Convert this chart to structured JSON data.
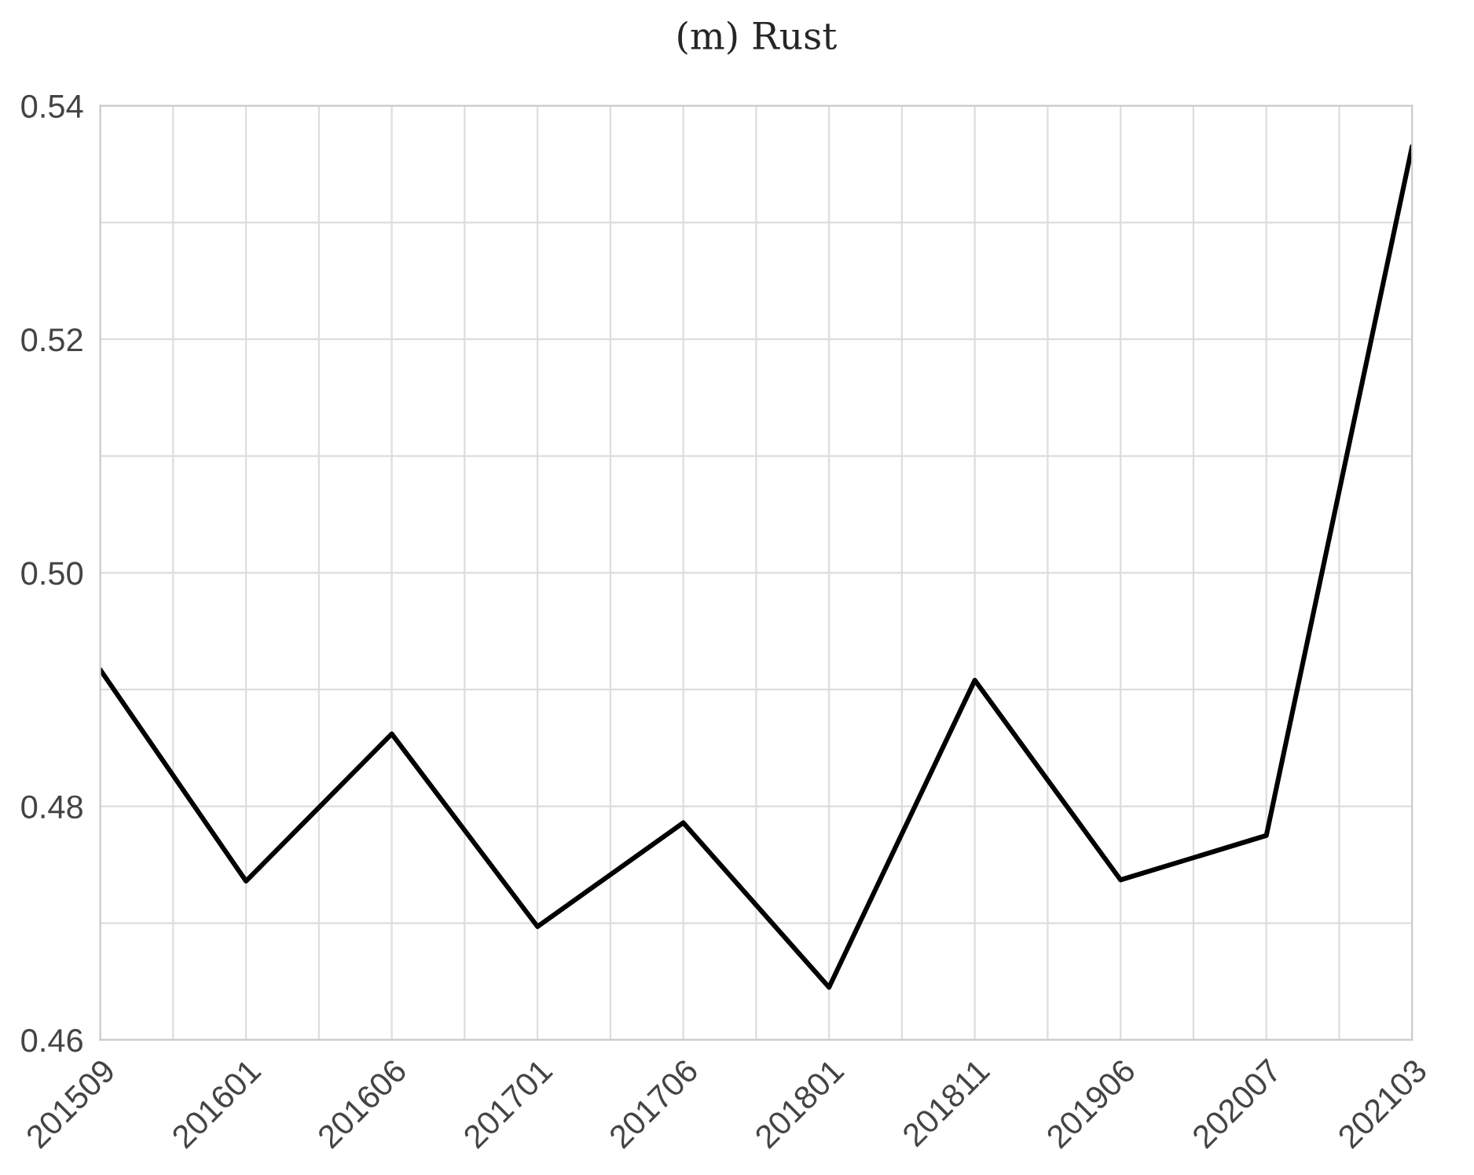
{
  "chart_data": {
    "type": "line",
    "title": "(m) Rust",
    "categories": [
      "201509",
      "201601",
      "201606",
      "201701",
      "201706",
      "201801",
      "201811",
      "201906",
      "202007",
      "202103"
    ],
    "series": [
      {
        "color": "#000000",
        "values": [
          0.4917,
          0.4736,
          0.4862,
          0.4697,
          0.4786,
          0.4645,
          0.4908,
          0.4737,
          0.4775,
          0.5365
        ]
      }
    ],
    "ylim": [
      0.46,
      0.54
    ],
    "yticks": [
      {
        "value": 0.46,
        "label": "0.46"
      },
      {
        "value": 0.47,
        "label": null
      },
      {
        "value": 0.48,
        "label": "0.48"
      },
      {
        "value": 0.49,
        "label": null
      },
      {
        "value": 0.5,
        "label": "0.50"
      },
      {
        "value": 0.51,
        "label": null
      },
      {
        "value": 0.52,
        "label": "0.52"
      },
      {
        "value": 0.53,
        "label": null
      },
      {
        "value": 0.54,
        "label": "0.54"
      }
    ],
    "grid": true,
    "marker": "none",
    "line_style": "solid"
  }
}
